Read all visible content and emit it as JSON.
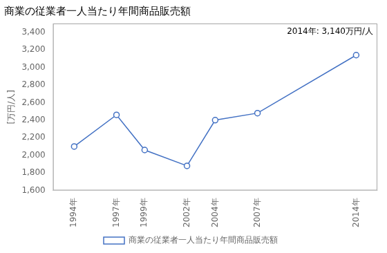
{
  "chart_data": {
    "type": "line",
    "title": "商業の従業者一人当たり年間商品販売額",
    "ylabel": "[万円/人]",
    "annotation": "2014年: 3,140万円/人",
    "x": [
      1994,
      1997,
      1999,
      2002,
      2004,
      2007,
      2014
    ],
    "series": [
      {
        "name": "商業の従業者一人当たり年間商品販売額",
        "color": "#4472C4",
        "marker": "circle",
        "values": [
          2100,
          2460,
          2060,
          1880,
          2400,
          2480,
          3140
        ]
      }
    ],
    "xlim": [
      1992.5,
      2015.5
    ],
    "xticks": [
      {
        "value": 1994,
        "label": "1994年"
      },
      {
        "value": 1997,
        "label": "1997年"
      },
      {
        "value": 1999,
        "label": "1999年"
      },
      {
        "value": 2002,
        "label": "2002年"
      },
      {
        "value": 2004,
        "label": "2004年"
      },
      {
        "value": 2007,
        "label": "2007年"
      },
      {
        "value": 2014,
        "label": "2014年"
      }
    ],
    "ylim": [
      1600,
      3500
    ],
    "yticks": [
      {
        "value": 1600,
        "label": "1,600"
      },
      {
        "value": 1800,
        "label": "1,800"
      },
      {
        "value": 2000,
        "label": "2,000"
      },
      {
        "value": 2200,
        "label": "2,200"
      },
      {
        "value": 2400,
        "label": "2,400"
      },
      {
        "value": 2600,
        "label": "2,600"
      },
      {
        "value": 2800,
        "label": "2,800"
      },
      {
        "value": 3000,
        "label": "3,000"
      },
      {
        "value": 3200,
        "label": "3,200"
      },
      {
        "value": 3400,
        "label": "3,400"
      }
    ],
    "grid": false,
    "legend": "bottom"
  }
}
